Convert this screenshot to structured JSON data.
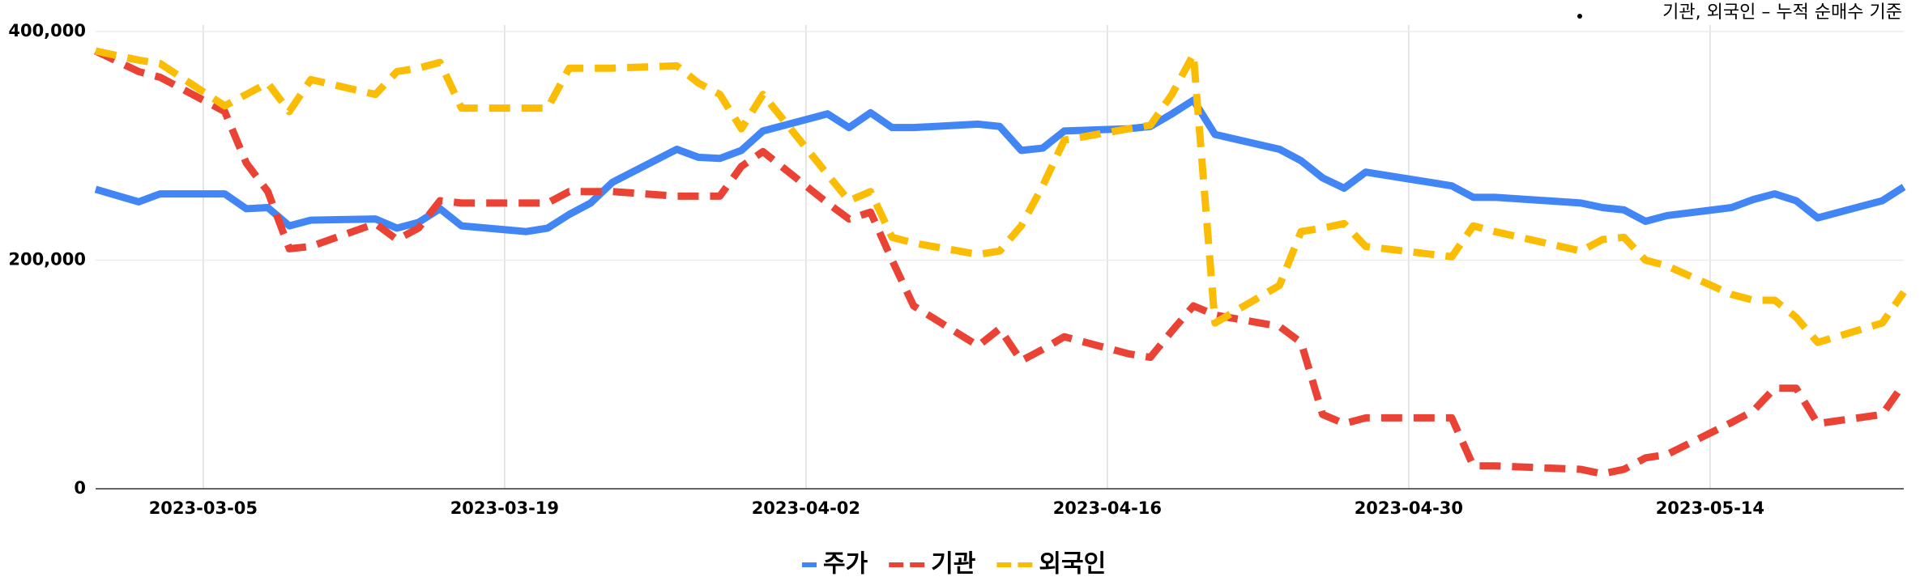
{
  "chart_data": {
    "type": "line",
    "note": "기관, 외국인 – 누적 순매수 기준",
    "x": [
      "2023-02-28",
      "2023-03-02",
      "2023-03-03",
      "2023-03-06",
      "2023-03-07",
      "2023-03-08",
      "2023-03-09",
      "2023-03-10",
      "2023-03-13",
      "2023-03-14",
      "2023-03-15",
      "2023-03-16",
      "2023-03-17",
      "2023-03-20",
      "2023-03-21",
      "2023-03-22",
      "2023-03-23",
      "2023-03-24",
      "2023-03-27",
      "2023-03-28",
      "2023-03-29",
      "2023-03-30",
      "2023-03-31",
      "2023-04-03",
      "2023-04-04",
      "2023-04-05",
      "2023-04-06",
      "2023-04-07",
      "2023-04-10",
      "2023-04-11",
      "2023-04-12",
      "2023-04-13",
      "2023-04-14",
      "2023-04-17",
      "2023-04-18",
      "2023-04-19",
      "2023-04-20",
      "2023-04-21",
      "2023-04-24",
      "2023-04-25",
      "2023-04-26",
      "2023-04-27",
      "2023-04-28",
      "2023-05-02",
      "2023-05-03",
      "2023-05-04",
      "2023-05-08",
      "2023-05-09",
      "2023-05-10",
      "2023-05-11",
      "2023-05-12",
      "2023-05-15",
      "2023-05-16",
      "2023-05-17",
      "2023-05-18",
      "2023-05-19",
      "2023-05-22",
      "2023-05-23"
    ],
    "series": [
      {
        "name": "주가",
        "color": "#4285f4",
        "style": "solid",
        "values": [
          262000,
          251000,
          258000,
          258000,
          245000,
          246000,
          230000,
          235000,
          236000,
          228000,
          233000,
          245000,
          230000,
          225000,
          228000,
          240000,
          250000,
          268000,
          297000,
          290000,
          289000,
          296000,
          313000,
          328000,
          316000,
          329000,
          316000,
          316000,
          319000,
          317000,
          296000,
          298000,
          313000,
          315000,
          317000,
          328000,
          340000,
          310000,
          297000,
          287000,
          272000,
          263000,
          277000,
          265000,
          255000,
          255000,
          250000,
          246000,
          244000,
          234000,
          239000,
          246000,
          253000,
          258000,
          252000,
          237000,
          252000,
          264000
        ]
      },
      {
        "name": "기관",
        "color": "#ea4335",
        "style": "dashed",
        "values": [
          383000,
          365000,
          360000,
          330000,
          285000,
          260000,
          210000,
          212000,
          232000,
          218000,
          228000,
          252000,
          250000,
          250000,
          250000,
          260000,
          260000,
          260000,
          256000,
          256000,
          256000,
          282000,
          295000,
          250000,
          236000,
          242000,
          200000,
          160000,
          125000,
          140000,
          112000,
          122000,
          133000,
          118000,
          115000,
          138000,
          160000,
          152000,
          142000,
          128000,
          65000,
          57000,
          62000,
          62000,
          20000,
          20000,
          17000,
          13000,
          17000,
          27000,
          30000,
          58000,
          68000,
          88000,
          88000,
          57000,
          65000,
          92000
        ]
      },
      {
        "name": "외국인",
        "color": "#fbbc04",
        "style": "dashed",
        "values": [
          383000,
          375000,
          372000,
          335000,
          345000,
          355000,
          330000,
          358000,
          345000,
          365000,
          368000,
          373000,
          333000,
          333000,
          333000,
          368000,
          368000,
          368000,
          370000,
          355000,
          345000,
          315000,
          345000,
          275000,
          252000,
          260000,
          220000,
          215000,
          205000,
          208000,
          230000,
          265000,
          305000,
          315000,
          318000,
          345000,
          380000,
          145000,
          178000,
          225000,
          228000,
          232000,
          212000,
          203000,
          230000,
          225000,
          208000,
          218000,
          220000,
          200000,
          195000,
          170000,
          165000,
          165000,
          150000,
          128000,
          145000,
          172000
        ]
      }
    ],
    "xlim": [
      "2023-02-28",
      "2023-05-23"
    ],
    "xticks": [
      "2023-03-05",
      "2023-03-19",
      "2023-04-02",
      "2023-04-16",
      "2023-04-30",
      "2023-05-14"
    ],
    "ylim": [
      0,
      400000
    ],
    "yticks": [
      0,
      {
        "value": 200000,
        "label": "200,000"
      },
      {
        "value": 400000,
        "label": "400,000"
      }
    ],
    "grid": true
  }
}
